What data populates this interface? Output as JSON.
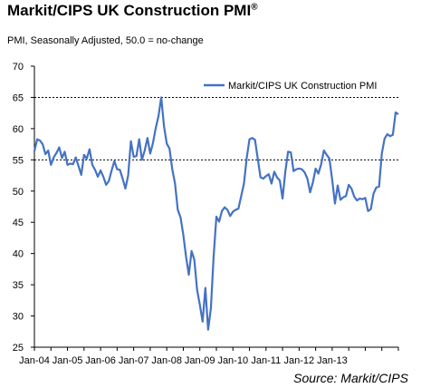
{
  "header": {
    "title": "Markit/CIPS UK Construction PMI",
    "title_mark": "®",
    "subtitle": "PMI, Seasonally Adjusted, 50.0 = no-change"
  },
  "source": "Source: Markit/CIPS",
  "colors": {
    "series": "#4472C4",
    "axis": "#000000",
    "reference_line": "#000000"
  },
  "chart_data": {
    "type": "line",
    "title": "Markit/CIPS UK Construction PMI",
    "subtitle": "PMI, Seasonally Adjusted, 50.0 = no-change",
    "ylim": [
      25,
      70
    ],
    "yticks": [
      25,
      30,
      35,
      40,
      45,
      50,
      55,
      60,
      65,
      70
    ],
    "xtick_labels": [
      "Jan-04",
      "Jan-05",
      "Jan-06",
      "Jan-07",
      "Jan-08",
      "Jan-09",
      "Jan-10",
      "Jan-11",
      "Jan-12",
      "Jan-13"
    ],
    "reference_lines": [
      55,
      65
    ],
    "legend": {
      "position": "top-right"
    },
    "grid": false,
    "x_start": "2004-01",
    "series": [
      {
        "name": "Markit/CIPS UK Construction PMI",
        "values": [
          56.4,
          58.3,
          58.1,
          57.5,
          55.9,
          56.5,
          54.2,
          55.4,
          56.1,
          57.0,
          55.3,
          56.3,
          54.2,
          54.4,
          54.3,
          55.4,
          54.0,
          52.6,
          55.8,
          55.2,
          56.7,
          54.2,
          53.4,
          52.3,
          53.3,
          52.3,
          51.0,
          51.6,
          53.3,
          54.8,
          53.5,
          53.4,
          52.0,
          50.4,
          52.5,
          58.0,
          55.5,
          55.6,
          58.3,
          55.0,
          56.5,
          58.5,
          56.0,
          57.7,
          60.1,
          62.0,
          65.0,
          60.4,
          57.6,
          56.8,
          53.5,
          51.2,
          47.0,
          45.8,
          43.0,
          39.5,
          36.6,
          40.4,
          39.0,
          34.2,
          31.8,
          29.1,
          34.5,
          27.8,
          31.2,
          39.5,
          45.9,
          45.1,
          46.8,
          47.4,
          47.0,
          46.0,
          46.7,
          47.0,
          47.2,
          49.2,
          51.2,
          55.3,
          58.3,
          58.5,
          58.2,
          55.2,
          52.2,
          52.0,
          52.4,
          52.7,
          51.2,
          53.1,
          52.2,
          51.7,
          48.8,
          53.1,
          56.3,
          56.2,
          53.2,
          53.5,
          53.6,
          53.5,
          53.0,
          52.0,
          49.8,
          51.4,
          53.6,
          52.8,
          54.3,
          56.5,
          55.8,
          55.2,
          51.8,
          48.0,
          50.9,
          48.6,
          49.0,
          49.2,
          51.0,
          50.4,
          49.1,
          48.5,
          48.8,
          48.7,
          48.9,
          46.8,
          47.1,
          49.6,
          50.6,
          50.7,
          56.0,
          58.4,
          59.1,
          58.8,
          59.0,
          62.6,
          62.3
        ]
      }
    ]
  }
}
